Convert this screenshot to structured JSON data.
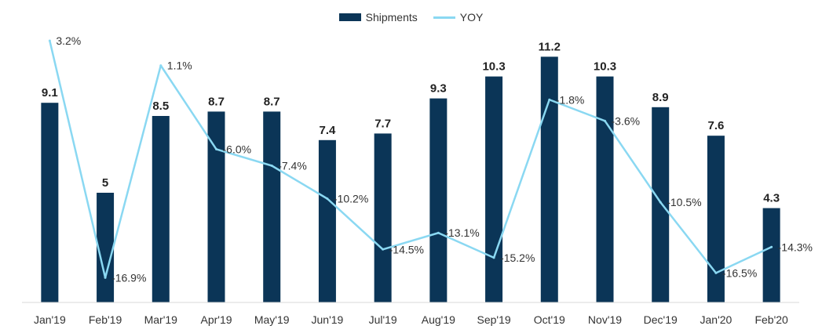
{
  "chart_data": {
    "type": "bar",
    "title": "",
    "xlabel": "",
    "ylabel": "",
    "categories": [
      "Jan'19",
      "Feb'19",
      "Mar'19",
      "Apr'19",
      "May'19",
      "Jun'19",
      "Jul'19",
      "Aug'19",
      "Sep'19",
      "Oct'19",
      "Nov'19",
      "Dec'19",
      "Jan'20",
      "Feb'20"
    ],
    "series": [
      {
        "name": "Shipments",
        "kind": "bar",
        "color": "#0b3557",
        "values": [
          9.1,
          5,
          8.5,
          8.7,
          8.7,
          7.4,
          7.7,
          9.3,
          10.3,
          11.2,
          10.3,
          8.9,
          7.6,
          4.3
        ],
        "labels": [
          "9.1",
          "5",
          "8.5",
          "8.7",
          "8.7",
          "7.4",
          "7.7",
          "9.3",
          "10.3",
          "11.2",
          "10.3",
          "8.9",
          "7.6",
          "4.3"
        ]
      },
      {
        "name": "YOY",
        "kind": "line",
        "color": "#8ad8f2",
        "values": [
          3.2,
          -16.9,
          1.1,
          -6.0,
          -7.4,
          -10.2,
          -14.5,
          -13.1,
          -15.2,
          -1.8,
          -3.6,
          -10.5,
          -16.5,
          -14.3
        ],
        "labels": [
          "3.2%",
          "-16.9%",
          "1.1%",
          "-6.0%",
          "-7.4%",
          "-10.2%",
          "-14.5%",
          "-13.1%",
          "-15.2%",
          "-1.8%",
          "-3.6%",
          "-10.5%",
          "-16.5%",
          "-14.3%"
        ]
      }
    ],
    "ylim_bars": [
      0,
      12
    ],
    "ylim_line": [
      -19,
      4
    ],
    "grid": false,
    "legend_position": "top-center"
  }
}
